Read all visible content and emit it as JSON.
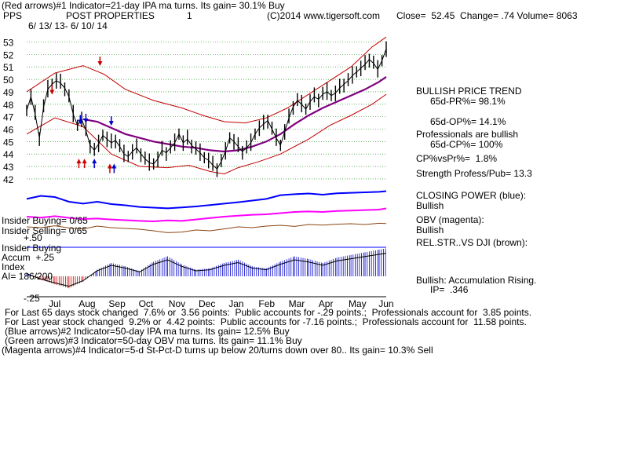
{
  "header": {
    "line1": "(Red arrows)#1 Indicator=21-day IPA ma turns. Its gain= 30.1% Buy",
    "symbol": "PPS",
    "company": "POST PROPERTIES",
    "chart_no": "1",
    "copyright": "(C)2014 www.tigersoft.com",
    "quote": "Close=  52.45  Change= .74 Volume= 8063",
    "date_range": "6/ 13/ 13- 6/ 10/ 14"
  },
  "right_panel": {
    "trend_title": "BULLISH PRICE TREND",
    "pr": "65d-PR%= 98.1%",
    "op": "65d-OP%= 14.1%",
    "pros": "Professionals are bullish",
    "cp": "65d-CP%= 100%",
    "cpvspr": "CP%vsPr%=  1.8%",
    "strength": "Strength Profess/Pub= 13.3",
    "closing_power": "CLOSING POWER (blue):",
    "closing_power_status": "Bullish",
    "obv": "OBV (magenta):",
    "obv_status": "Bullish",
    "relstr": "REL.STR..VS DJI (brown):",
    "accum_status": "Bullish: Accumulation Rising.",
    "ip": "IP=  .346"
  },
  "left_labels": {
    "insider_buying": "Insider Buying= 0/65",
    "insider_selling": "Insider Selling= 0/65",
    "plus50": "+.50",
    "accum1": "Insider Buying",
    "accum2": "Accum  +.25",
    "accum3": "Index",
    "ai": "AI= 186/200",
    "minus25": "-.25"
  },
  "footer": {
    "line1": "For Last 65 days stock changed  7.6% or  3.56 points:  Public accounts for -.29 points.;  Professionals account for  3.85 points.",
    "line2": "For Last year stock changed  9.2% or  4.42 points:  Public accounts for -7.16 points.;  Professionals account for  11.58 points.",
    "line3": "(Blue arrows)#2 Indicator=50-day IPA ma turns. Its gain= 12.5% Buy",
    "line4": "(Green arrows)#3 Indicator=50-day OBV ma turns. Its gain= 11.1% Buy",
    "line5": "(Magenta arrows)#4 Indicator=5-d St-Pct-D turns up below 20/turns down over 80.. Its gain= 10.3% Sell"
  },
  "colors": {
    "price": "#000000",
    "band": "#c00000",
    "ma": "#800080",
    "closing_power": "#0000ff",
    "obv": "#ff00ff",
    "relstr": "#8b4513",
    "accum_pos": "#0000cc",
    "accum_neg": "#cc0000",
    "grid": "#008000",
    "insider_line": "#0000ff"
  },
  "chart_data": {
    "type": "line",
    "price_axis": {
      "ticks": [
        42,
        43,
        44,
        45,
        46,
        47,
        48,
        49,
        50,
        51,
        52,
        53
      ],
      "ylim": [
        41.3,
        53.6
      ]
    },
    "months": [
      "Jul",
      "Aug",
      "Sep",
      "Oct",
      "Nov",
      "Dec",
      "Jan",
      "Feb",
      "Mar",
      "Apr",
      "May",
      "Jun"
    ],
    "accum_axis": {
      "ticks": [
        "+.50",
        "+.25",
        "-.25"
      ]
    },
    "price_series": [
      {
        "x": 0,
        "v": 47.5
      },
      {
        "x": 3,
        "v": 48.6
      },
      {
        "x": 6,
        "v": 47.2
      },
      {
        "x": 9,
        "v": 45.3
      },
      {
        "x": 12,
        "v": 47.8
      },
      {
        "x": 15,
        "v": 49.2
      },
      {
        "x": 18,
        "v": 49.6
      },
      {
        "x": 21,
        "v": 49.9
      },
      {
        "x": 24,
        "v": 49.7
      },
      {
        "x": 27,
        "v": 49.3
      },
      {
        "x": 30,
        "v": 48.6
      },
      {
        "x": 33,
        "v": 47.2
      },
      {
        "x": 36,
        "v": 46.3
      },
      {
        "x": 39,
        "v": 46.8
      },
      {
        "x": 42,
        "v": 45.9
      },
      {
        "x": 45,
        "v": 44.7
      },
      {
        "x": 48,
        "v": 44.3
      },
      {
        "x": 51,
        "v": 44.8
      },
      {
        "x": 54,
        "v": 45.5
      },
      {
        "x": 57,
        "v": 45.2
      },
      {
        "x": 60,
        "v": 44.9
      },
      {
        "x": 63,
        "v": 45.1
      },
      {
        "x": 66,
        "v": 44.6
      },
      {
        "x": 69,
        "v": 44.0
      },
      {
        "x": 72,
        "v": 43.8
      },
      {
        "x": 75,
        "v": 44.2
      },
      {
        "x": 78,
        "v": 44.5
      },
      {
        "x": 81,
        "v": 44.0
      },
      {
        "x": 84,
        "v": 43.6
      },
      {
        "x": 87,
        "v": 43.3
      },
      {
        "x": 90,
        "v": 43.2
      },
      {
        "x": 93,
        "v": 43.6
      },
      {
        "x": 96,
        "v": 44.3
      },
      {
        "x": 99,
        "v": 44.1
      },
      {
        "x": 102,
        "v": 44.5
      },
      {
        "x": 105,
        "v": 44.9
      },
      {
        "x": 108,
        "v": 45.6
      },
      {
        "x": 111,
        "v": 44.9
      },
      {
        "x": 114,
        "v": 45.2
      },
      {
        "x": 117,
        "v": 44.7
      },
      {
        "x": 120,
        "v": 44.4
      },
      {
        "x": 123,
        "v": 44.1
      },
      {
        "x": 126,
        "v": 43.7
      },
      {
        "x": 129,
        "v": 43.5
      },
      {
        "x": 132,
        "v": 43.1
      },
      {
        "x": 135,
        "v": 42.8
      },
      {
        "x": 138,
        "v": 43.4
      },
      {
        "x": 141,
        "v": 44.2
      },
      {
        "x": 144,
        "v": 45.3
      },
      {
        "x": 147,
        "v": 45.0
      },
      {
        "x": 150,
        "v": 44.6
      },
      {
        "x": 153,
        "v": 44.2
      },
      {
        "x": 156,
        "v": 44.5
      },
      {
        "x": 159,
        "v": 44.9
      },
      {
        "x": 162,
        "v": 45.6
      },
      {
        "x": 165,
        "v": 46.1
      },
      {
        "x": 168,
        "v": 46.4
      },
      {
        "x": 171,
        "v": 46.7
      },
      {
        "x": 174,
        "v": 46.0
      },
      {
        "x": 177,
        "v": 45.3
      },
      {
        "x": 180,
        "v": 44.7
      },
      {
        "x": 183,
        "v": 45.8
      },
      {
        "x": 186,
        "v": 46.9
      },
      {
        "x": 189,
        "v": 47.8
      },
      {
        "x": 192,
        "v": 48.3
      },
      {
        "x": 195,
        "v": 48.0
      },
      {
        "x": 198,
        "v": 47.6
      },
      {
        "x": 201,
        "v": 48.2
      },
      {
        "x": 204,
        "v": 48.6
      },
      {
        "x": 207,
        "v": 48.4
      },
      {
        "x": 210,
        "v": 48.8
      },
      {
        "x": 213,
        "v": 49.0
      },
      {
        "x": 216,
        "v": 48.7
      },
      {
        "x": 219,
        "v": 48.9
      },
      {
        "x": 222,
        "v": 49.3
      },
      {
        "x": 225,
        "v": 49.6
      },
      {
        "x": 228,
        "v": 49.9
      },
      {
        "x": 231,
        "v": 50.3
      },
      {
        "x": 234,
        "v": 50.6
      },
      {
        "x": 237,
        "v": 50.9
      },
      {
        "x": 240,
        "v": 51.2
      },
      {
        "x": 243,
        "v": 51.6
      },
      {
        "x": 246,
        "v": 51.3
      },
      {
        "x": 249,
        "v": 50.8
      },
      {
        "x": 252,
        "v": 51.5
      },
      {
        "x": 255,
        "v": 52.45
      }
    ],
    "upper_band": [
      {
        "x": 0,
        "v": 49.0
      },
      {
        "x": 20,
        "v": 50.5
      },
      {
        "x": 40,
        "v": 51.1
      },
      {
        "x": 55,
        "v": 50.4
      },
      {
        "x": 70,
        "v": 49.2
      },
      {
        "x": 90,
        "v": 48.3
      },
      {
        "x": 110,
        "v": 47.7
      },
      {
        "x": 125,
        "v": 47.1
      },
      {
        "x": 140,
        "v": 46.6
      },
      {
        "x": 155,
        "v": 46.5
      },
      {
        "x": 170,
        "v": 46.9
      },
      {
        "x": 185,
        "v": 47.7
      },
      {
        "x": 200,
        "v": 48.8
      },
      {
        "x": 215,
        "v": 49.9
      },
      {
        "x": 230,
        "v": 51.0
      },
      {
        "x": 245,
        "v": 52.6
      },
      {
        "x": 255,
        "v": 53.4
      }
    ],
    "lower_band": [
      {
        "x": 0,
        "v": 45.6
      },
      {
        "x": 20,
        "v": 46.9
      },
      {
        "x": 40,
        "v": 46.2
      },
      {
        "x": 60,
        "v": 44.0
      },
      {
        "x": 80,
        "v": 43.0
      },
      {
        "x": 100,
        "v": 42.9
      },
      {
        "x": 115,
        "v": 43.1
      },
      {
        "x": 130,
        "v": 42.6
      },
      {
        "x": 140,
        "v": 42.4
      },
      {
        "x": 150,
        "v": 42.9
      },
      {
        "x": 165,
        "v": 43.4
      },
      {
        "x": 180,
        "v": 44.0
      },
      {
        "x": 200,
        "v": 45.2
      },
      {
        "x": 215,
        "v": 46.3
      },
      {
        "x": 230,
        "v": 47.1
      },
      {
        "x": 245,
        "v": 48.0
      },
      {
        "x": 255,
        "v": 48.8
      }
    ],
    "moving_average": [
      {
        "x": 40,
        "v": 46.8
      },
      {
        "x": 50,
        "v": 46.6
      },
      {
        "x": 60,
        "v": 46.1
      },
      {
        "x": 70,
        "v": 45.6
      },
      {
        "x": 80,
        "v": 45.3
      },
      {
        "x": 90,
        "v": 45.0
      },
      {
        "x": 100,
        "v": 44.8
      },
      {
        "x": 110,
        "v": 44.6
      },
      {
        "x": 120,
        "v": 44.5
      },
      {
        "x": 130,
        "v": 44.3
      },
      {
        "x": 140,
        "v": 44.2
      },
      {
        "x": 150,
        "v": 44.3
      },
      {
        "x": 160,
        "v": 44.6
      },
      {
        "x": 170,
        "v": 45.0
      },
      {
        "x": 180,
        "v": 45.6
      },
      {
        "x": 190,
        "v": 46.4
      },
      {
        "x": 200,
        "v": 47.1
      },
      {
        "x": 210,
        "v": 47.7
      },
      {
        "x": 220,
        "v": 48.2
      },
      {
        "x": 230,
        "v": 48.7
      },
      {
        "x": 240,
        "v": 49.2
      },
      {
        "x": 250,
        "v": 49.8
      },
      {
        "x": 255,
        "v": 50.2
      }
    ],
    "closing_power": [
      {
        "x": 0,
        "v": 0.62
      },
      {
        "x": 10,
        "v": 0.75
      },
      {
        "x": 20,
        "v": 0.7
      },
      {
        "x": 30,
        "v": 0.5
      },
      {
        "x": 40,
        "v": 0.42
      },
      {
        "x": 50,
        "v": 0.5
      },
      {
        "x": 60,
        "v": 0.4
      },
      {
        "x": 70,
        "v": 0.35
      },
      {
        "x": 80,
        "v": 0.28
      },
      {
        "x": 90,
        "v": 0.25
      },
      {
        "x": 100,
        "v": 0.22
      },
      {
        "x": 110,
        "v": 0.26
      },
      {
        "x": 120,
        "v": 0.3
      },
      {
        "x": 130,
        "v": 0.36
      },
      {
        "x": 140,
        "v": 0.42
      },
      {
        "x": 150,
        "v": 0.48
      },
      {
        "x": 160,
        "v": 0.55
      },
      {
        "x": 170,
        "v": 0.62
      },
      {
        "x": 180,
        "v": 0.78
      },
      {
        "x": 190,
        "v": 0.82
      },
      {
        "x": 200,
        "v": 0.85
      },
      {
        "x": 210,
        "v": 0.8
      },
      {
        "x": 220,
        "v": 0.86
      },
      {
        "x": 230,
        "v": 0.88
      },
      {
        "x": 240,
        "v": 0.9
      },
      {
        "x": 250,
        "v": 0.92
      },
      {
        "x": 255,
        "v": 0.95
      }
    ],
    "obv": [
      {
        "x": 0,
        "v": 0.3
      },
      {
        "x": 10,
        "v": 0.26
      },
      {
        "x": 20,
        "v": 0.32
      },
      {
        "x": 30,
        "v": 0.25
      },
      {
        "x": 40,
        "v": 0.2
      },
      {
        "x": 50,
        "v": 0.22
      },
      {
        "x": 60,
        "v": 0.18
      },
      {
        "x": 70,
        "v": 0.15
      },
      {
        "x": 80,
        "v": 0.12
      },
      {
        "x": 90,
        "v": 0.1
      },
      {
        "x": 100,
        "v": 0.14
      },
      {
        "x": 110,
        "v": 0.12
      },
      {
        "x": 120,
        "v": 0.18
      },
      {
        "x": 130,
        "v": 0.24
      },
      {
        "x": 140,
        "v": 0.3
      },
      {
        "x": 150,
        "v": 0.34
      },
      {
        "x": 160,
        "v": 0.38
      },
      {
        "x": 170,
        "v": 0.4
      },
      {
        "x": 180,
        "v": 0.45
      },
      {
        "x": 190,
        "v": 0.5
      },
      {
        "x": 200,
        "v": 0.52
      },
      {
        "x": 210,
        "v": 0.5
      },
      {
        "x": 220,
        "v": 0.54
      },
      {
        "x": 230,
        "v": 0.56
      },
      {
        "x": 240,
        "v": 0.58
      },
      {
        "x": 250,
        "v": 0.6
      },
      {
        "x": 255,
        "v": 0.65
      }
    ],
    "relstr": [
      {
        "x": 0,
        "v": 0.55
      },
      {
        "x": 10,
        "v": 0.5
      },
      {
        "x": 20,
        "v": 0.62
      },
      {
        "x": 30,
        "v": 0.48
      },
      {
        "x": 40,
        "v": 0.42
      },
      {
        "x": 50,
        "v": 0.6
      },
      {
        "x": 60,
        "v": 0.5
      },
      {
        "x": 70,
        "v": 0.45
      },
      {
        "x": 80,
        "v": 0.4
      },
      {
        "x": 90,
        "v": 0.3
      },
      {
        "x": 100,
        "v": 0.18
      },
      {
        "x": 110,
        "v": 0.22
      },
      {
        "x": 120,
        "v": 0.35
      },
      {
        "x": 130,
        "v": 0.3
      },
      {
        "x": 140,
        "v": 0.42
      },
      {
        "x": 150,
        "v": 0.55
      },
      {
        "x": 160,
        "v": 0.5
      },
      {
        "x": 170,
        "v": 0.6
      },
      {
        "x": 180,
        "v": 0.65
      },
      {
        "x": 190,
        "v": 0.58
      },
      {
        "x": 200,
        "v": 0.7
      },
      {
        "x": 210,
        "v": 0.66
      },
      {
        "x": 220,
        "v": 0.72
      },
      {
        "x": 230,
        "v": 0.75
      },
      {
        "x": 240,
        "v": 0.7
      },
      {
        "x": 250,
        "v": 0.78
      },
      {
        "x": 255,
        "v": 0.76
      }
    ],
    "accum_index": [
      {
        "x": 0,
        "v": 0.05
      },
      {
        "x": 10,
        "v": -0.05
      },
      {
        "x": 20,
        "v": -0.12
      },
      {
        "x": 30,
        "v": -0.18
      },
      {
        "x": 40,
        "v": -0.08
      },
      {
        "x": 50,
        "v": 0.1
      },
      {
        "x": 60,
        "v": 0.2
      },
      {
        "x": 70,
        "v": 0.15
      },
      {
        "x": 80,
        "v": 0.08
      },
      {
        "x": 90,
        "v": 0.22
      },
      {
        "x": 100,
        "v": 0.3
      },
      {
        "x": 110,
        "v": 0.18
      },
      {
        "x": 120,
        "v": 0.1
      },
      {
        "x": 130,
        "v": 0.12
      },
      {
        "x": 140,
        "v": 0.2
      },
      {
        "x": 150,
        "v": 0.25
      },
      {
        "x": 160,
        "v": 0.15
      },
      {
        "x": 170,
        "v": 0.12
      },
      {
        "x": 180,
        "v": 0.22
      },
      {
        "x": 190,
        "v": 0.3
      },
      {
        "x": 200,
        "v": 0.26
      },
      {
        "x": 210,
        "v": 0.2
      },
      {
        "x": 220,
        "v": 0.28
      },
      {
        "x": 230,
        "v": 0.32
      },
      {
        "x": 240,
        "v": 0.36
      },
      {
        "x": 250,
        "v": 0.4
      },
      {
        "x": 255,
        "v": 0.42
      }
    ],
    "arrows": [
      {
        "x": 18,
        "v": 48.9,
        "color": "#cc0000",
        "dir": "down"
      },
      {
        "x": 38,
        "v": 46.5,
        "color": "#0000cc",
        "dir": "down"
      },
      {
        "x": 42,
        "v": 46.6,
        "color": "#0000cc",
        "dir": "down"
      },
      {
        "x": 52,
        "v": 51.2,
        "color": "#cc0000",
        "dir": "down"
      },
      {
        "x": 60,
        "v": 46.4,
        "color": "#0000cc",
        "dir": "down"
      },
      {
        "x": 37,
        "v": 43.5,
        "color": "#cc0000",
        "dir": "up"
      },
      {
        "x": 41,
        "v": 43.5,
        "color": "#cc0000",
        "dir": "up"
      },
      {
        "x": 48,
        "v": 43.5,
        "color": "#0000cc",
        "dir": "up"
      },
      {
        "x": 59,
        "v": 43.1,
        "color": "#cc0000",
        "dir": "up"
      },
      {
        "x": 62,
        "v": 43.1,
        "color": "#0000cc",
        "dir": "up"
      }
    ]
  }
}
